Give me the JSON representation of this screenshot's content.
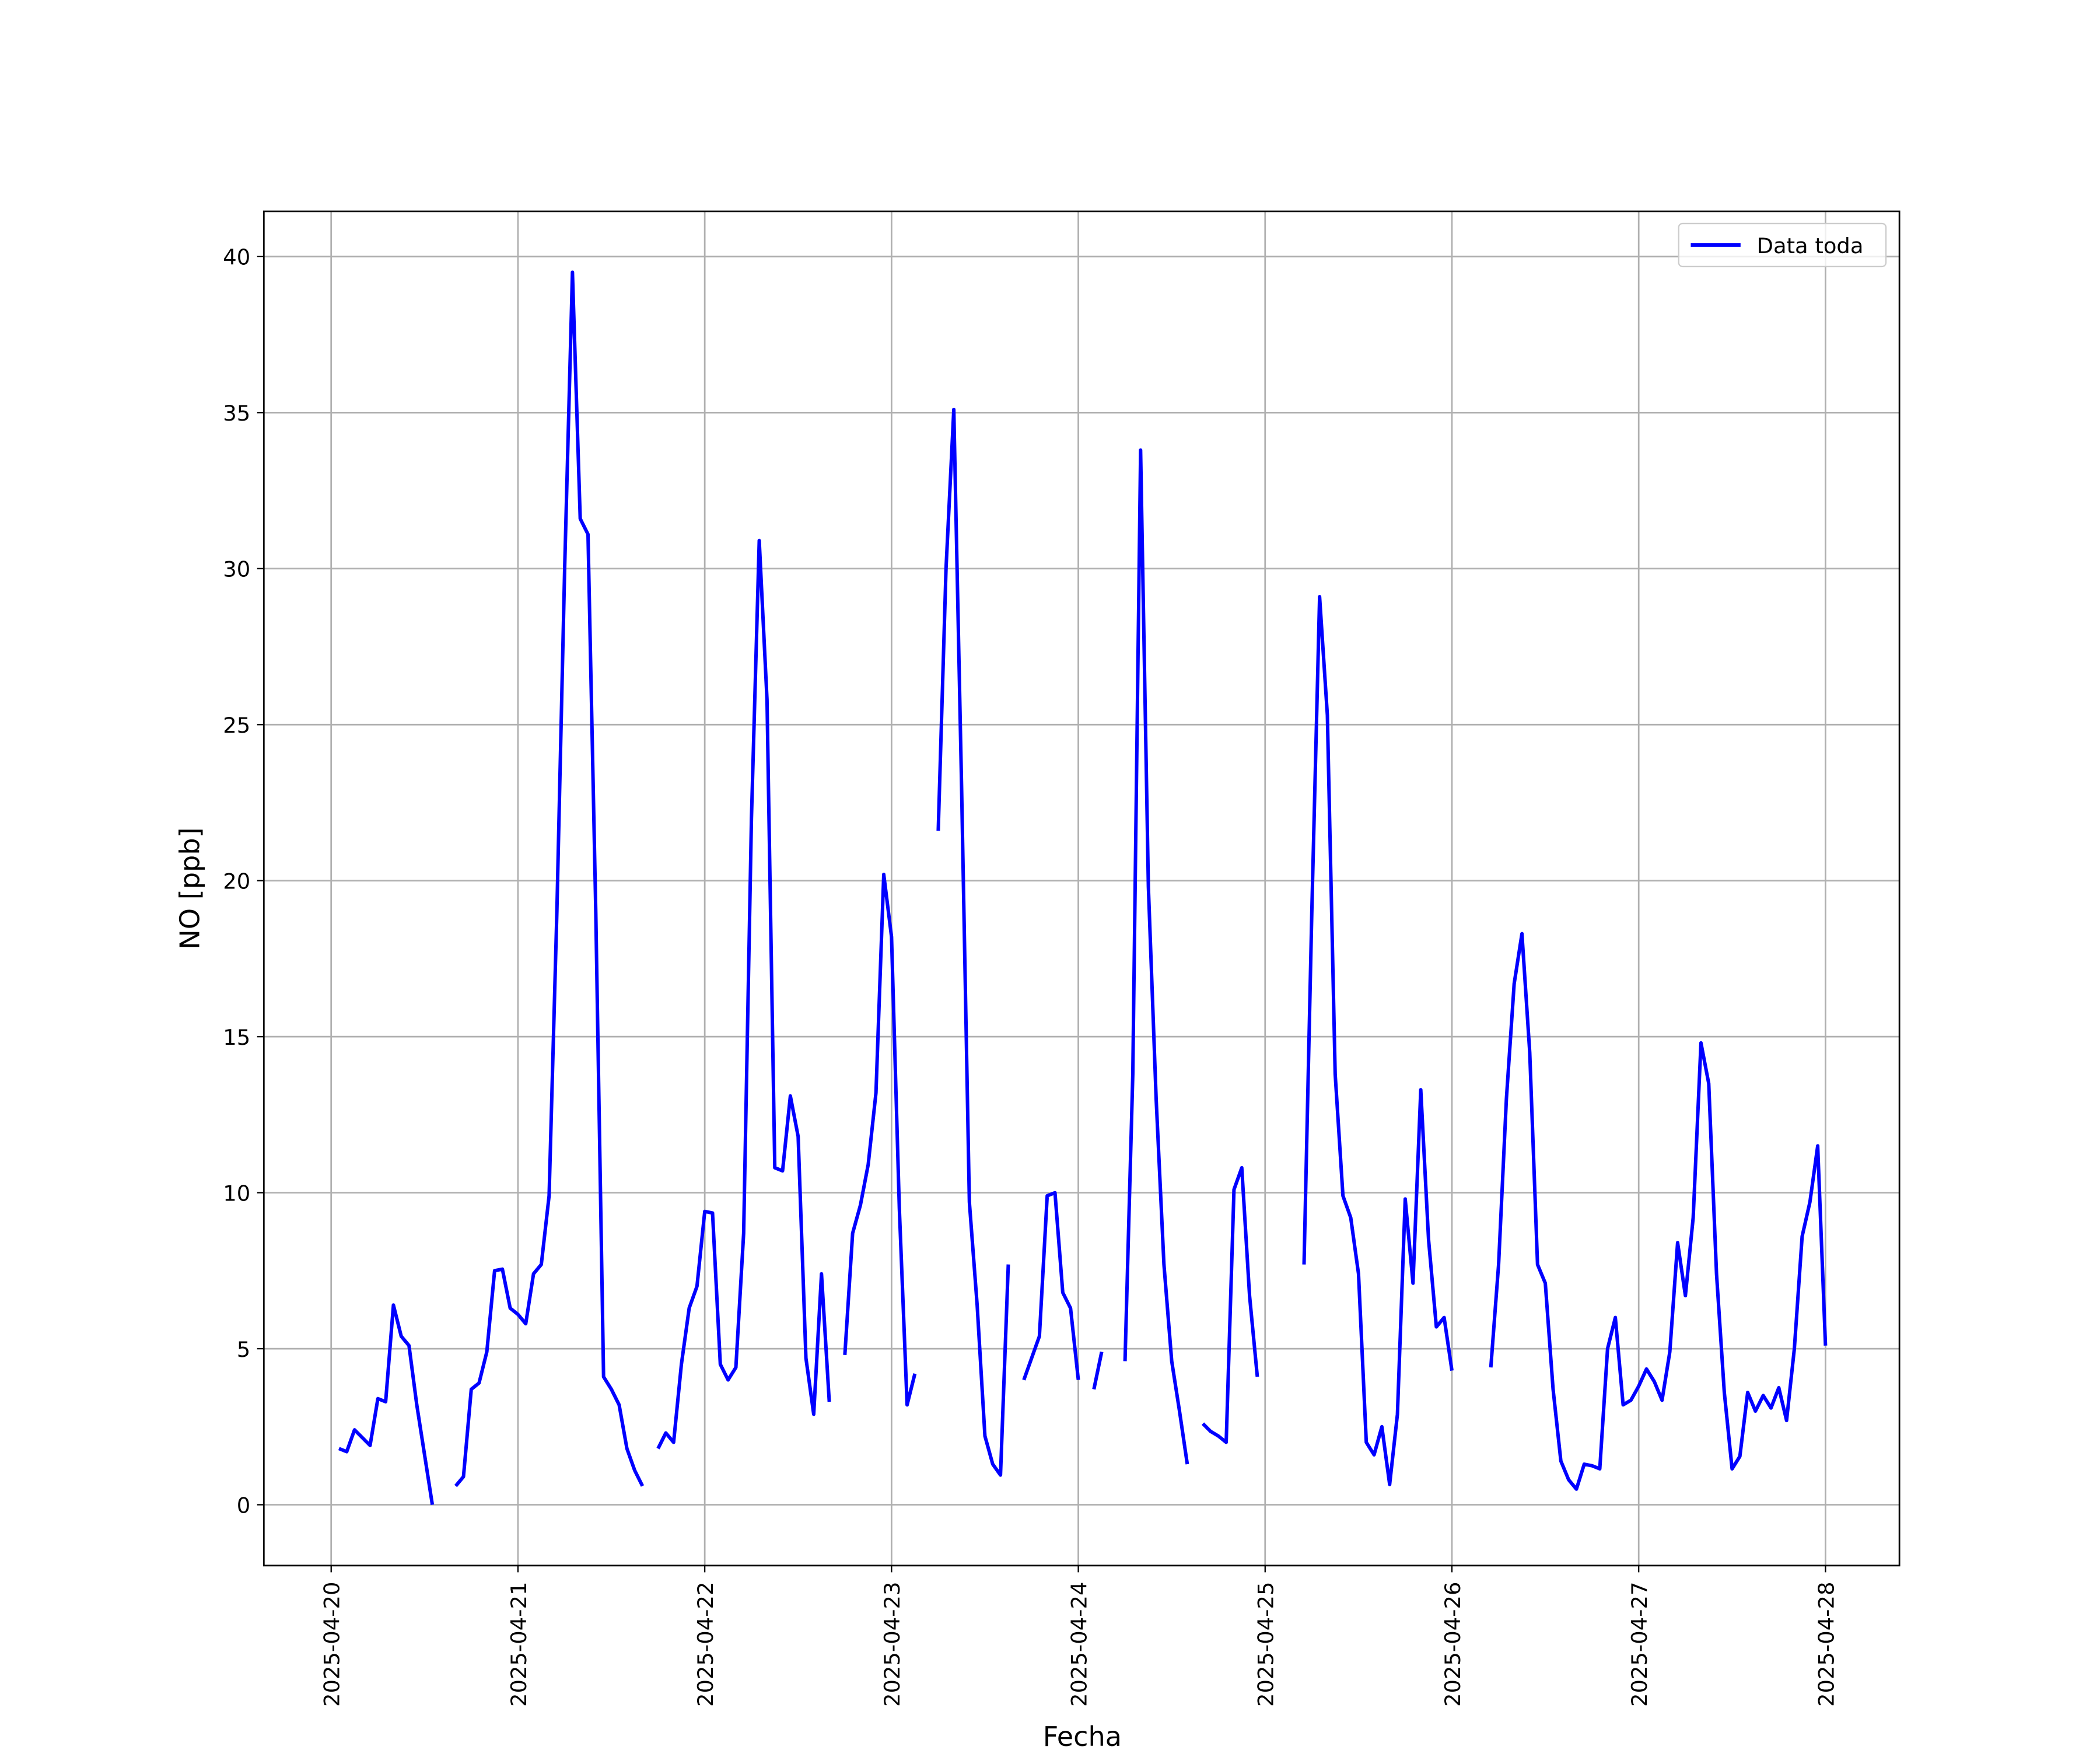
{
  "chart_data": {
    "type": "line",
    "xlabel": "Fecha",
    "ylabel": "NO [ppb]",
    "x": [
      "2025-04-20 01:00",
      "2025-04-20 02:00",
      "2025-04-20 03:00",
      "2025-04-20 04:00",
      "2025-04-20 05:00",
      "2025-04-20 06:00",
      "2025-04-20 07:00",
      "2025-04-20 08:00",
      "2025-04-20 09:00",
      "2025-04-20 10:00",
      "2025-04-20 11:00",
      "2025-04-20 12:00",
      "2025-04-20 13:00",
      "2025-04-20 14:00",
      "2025-04-20 15:00",
      "2025-04-20 16:00",
      "2025-04-20 17:00",
      "2025-04-20 18:00",
      "2025-04-20 19:00",
      "2025-04-20 20:00",
      "2025-04-20 21:00",
      "2025-04-20 22:00",
      "2025-04-20 23:00",
      "2025-04-21 00:00",
      "2025-04-21 01:00",
      "2025-04-21 02:00",
      "2025-04-21 03:00",
      "2025-04-21 04:00",
      "2025-04-21 05:00",
      "2025-04-21 06:00",
      "2025-04-21 07:00",
      "2025-04-21 08:00",
      "2025-04-21 09:00",
      "2025-04-21 10:00",
      "2025-04-21 11:00",
      "2025-04-21 12:00",
      "2025-04-21 13:00",
      "2025-04-21 14:00",
      "2025-04-21 15:00",
      "2025-04-21 16:00",
      "2025-04-21 17:00",
      "2025-04-21 18:00",
      "2025-04-21 19:00",
      "2025-04-21 20:00",
      "2025-04-21 21:00",
      "2025-04-21 22:00",
      "2025-04-21 23:00",
      "2025-04-22 00:00",
      "2025-04-22 01:00",
      "2025-04-22 02:00",
      "2025-04-22 03:00",
      "2025-04-22 04:00",
      "2025-04-22 05:00",
      "2025-04-22 06:00",
      "2025-04-22 07:00",
      "2025-04-22 08:00",
      "2025-04-22 09:00",
      "2025-04-22 10:00",
      "2025-04-22 11:00",
      "2025-04-22 12:00",
      "2025-04-22 13:00",
      "2025-04-22 14:00",
      "2025-04-22 15:00",
      "2025-04-22 16:00",
      "2025-04-22 17:00",
      "2025-04-22 18:00",
      "2025-04-22 19:00",
      "2025-04-22 20:00",
      "2025-04-22 21:00",
      "2025-04-22 22:00",
      "2025-04-22 23:00",
      "2025-04-23 00:00",
      "2025-04-23 01:00",
      "2025-04-23 02:00",
      "2025-04-23 03:00",
      "2025-04-23 04:00",
      "2025-04-23 05:00",
      "2025-04-23 06:00",
      "2025-04-23 07:00",
      "2025-04-23 08:00",
      "2025-04-23 09:00",
      "2025-04-23 10:00",
      "2025-04-23 11:00",
      "2025-04-23 12:00",
      "2025-04-23 13:00",
      "2025-04-23 14:00",
      "2025-04-23 15:00",
      "2025-04-23 16:00",
      "2025-04-23 17:00",
      "2025-04-23 18:00",
      "2025-04-23 19:00",
      "2025-04-23 20:00",
      "2025-04-23 21:00",
      "2025-04-23 22:00",
      "2025-04-23 23:00",
      "2025-04-24 00:00",
      "2025-04-24 01:00",
      "2025-04-24 02:00",
      "2025-04-24 03:00",
      "2025-04-24 04:00",
      "2025-04-24 05:00",
      "2025-04-24 06:00",
      "2025-04-24 07:00",
      "2025-04-24 08:00",
      "2025-04-24 09:00",
      "2025-04-24 10:00",
      "2025-04-24 11:00",
      "2025-04-24 12:00",
      "2025-04-24 13:00",
      "2025-04-24 14:00",
      "2025-04-24 15:00",
      "2025-04-24 16:00",
      "2025-04-24 17:00",
      "2025-04-24 18:00",
      "2025-04-24 19:00",
      "2025-04-24 20:00",
      "2025-04-24 21:00",
      "2025-04-24 22:00",
      "2025-04-24 23:00",
      "2025-04-25 00:00",
      "2025-04-25 01:00",
      "2025-04-25 02:00",
      "2025-04-25 03:00",
      "2025-04-25 04:00",
      "2025-04-25 05:00",
      "2025-04-25 06:00",
      "2025-04-25 07:00",
      "2025-04-25 08:00",
      "2025-04-25 09:00",
      "2025-04-25 10:00",
      "2025-04-25 11:00",
      "2025-04-25 12:00",
      "2025-04-25 13:00",
      "2025-04-25 14:00",
      "2025-04-25 15:00",
      "2025-04-25 16:00",
      "2025-04-25 17:00",
      "2025-04-25 18:00",
      "2025-04-25 19:00",
      "2025-04-25 20:00",
      "2025-04-25 21:00",
      "2025-04-25 22:00",
      "2025-04-25 23:00",
      "2025-04-26 00:00",
      "2025-04-26 01:00",
      "2025-04-26 02:00",
      "2025-04-26 03:00",
      "2025-04-26 04:00",
      "2025-04-26 05:00",
      "2025-04-26 06:00",
      "2025-04-26 07:00",
      "2025-04-26 08:00",
      "2025-04-26 09:00",
      "2025-04-26 10:00",
      "2025-04-26 11:00",
      "2025-04-26 12:00",
      "2025-04-26 13:00",
      "2025-04-26 14:00",
      "2025-04-26 15:00",
      "2025-04-26 16:00",
      "2025-04-26 17:00",
      "2025-04-26 18:00",
      "2025-04-26 19:00",
      "2025-04-26 20:00",
      "2025-04-26 21:00",
      "2025-04-26 22:00",
      "2025-04-26 23:00",
      "2025-04-27 00:00",
      "2025-04-27 01:00",
      "2025-04-27 02:00",
      "2025-04-27 03:00",
      "2025-04-27 04:00",
      "2025-04-27 05:00",
      "2025-04-27 06:00",
      "2025-04-27 07:00",
      "2025-04-27 08:00",
      "2025-04-27 09:00",
      "2025-04-27 10:00",
      "2025-04-27 11:00",
      "2025-04-27 12:00",
      "2025-04-27 13:00",
      "2025-04-27 14:00",
      "2025-04-27 15:00",
      "2025-04-27 16:00",
      "2025-04-27 17:00",
      "2025-04-27 18:00",
      "2025-04-27 19:00",
      "2025-04-27 20:00",
      "2025-04-27 21:00",
      "2025-04-27 22:00",
      "2025-04-27 23:00",
      "2025-04-28 00:00"
    ],
    "series": [
      {
        "name": "Data toda",
        "color": "#0000ff",
        "values": [
          1.8,
          1.7,
          2.4,
          2.15,
          1.9,
          3.4,
          3.3,
          6.4,
          5.4,
          5.1,
          3.2,
          1.6,
          0,
          null,
          null,
          0.6,
          0.9,
          3.7,
          3.9,
          4.9,
          7.5,
          7.55,
          6.3,
          6.1,
          5.8,
          7.4,
          7.7,
          9.9,
          19,
          30,
          39.5,
          31.6,
          31.1,
          19,
          4.1,
          3.7,
          3.2,
          1.8,
          1.1,
          0.6,
          null,
          1.8,
          2.3,
          2.0,
          4.5,
          6.3,
          7.0,
          9.4,
          9.35,
          4.5,
          4.0,
          4.4,
          8.7,
          22,
          30.9,
          25.8,
          10.8,
          10.7,
          13.1,
          11.8,
          4.7,
          2.9,
          7.4,
          3.3,
          null,
          4.8,
          8.7,
          9.6,
          10.9,
          13.2,
          20.2,
          18.2,
          9.5,
          3.2,
          4.2,
          null,
          null,
          21.6,
          30,
          35.1,
          23,
          9.7,
          6.4,
          2.2,
          1.3,
          0.95,
          7.7,
          null,
          4.0,
          4.7,
          5.4,
          9.9,
          10.0,
          6.8,
          6.3,
          4.0,
          null,
          3.7,
          4.9,
          null,
          null,
          4.6,
          13.8,
          33.8,
          19.8,
          13,
          7.7,
          4.6,
          3.0,
          1.3,
          null,
          2.6,
          2.35,
          2.2,
          2.0,
          10.1,
          10.8,
          6.7,
          4.1,
          null,
          null,
          null,
          null,
          null,
          7.7,
          19,
          29.1,
          25.3,
          13.8,
          9.9,
          9.2,
          7.4,
          2.0,
          1.6,
          2.5,
          0.65,
          2.9,
          9.8,
          7.1,
          13.3,
          8.5,
          5.7,
          6.0,
          4.3,
          null,
          null,
          null,
          null,
          4.4,
          7.7,
          13,
          16.7,
          18.3,
          14.5,
          7.7,
          7.1,
          3.7,
          1.4,
          0.8,
          0.5,
          1.3,
          1.25,
          1.15,
          5.0,
          6.0,
          3.2,
          3.35,
          3.8,
          4.35,
          3.95,
          3.35,
          4.9,
          8.4,
          6.7,
          9.2,
          14.8,
          13.5,
          7.4,
          3.6,
          1.15,
          1.55,
          3.6,
          3.0,
          3.5,
          3.1,
          3.75,
          2.7,
          5.0,
          8.6,
          9.7,
          11.5,
          5.1
        ]
      }
    ],
    "xlim": [
      "2025-04-19 15:21",
      "2025-04-28 09:30"
    ],
    "xticks": [
      "2025-04-20",
      "2025-04-21",
      "2025-04-22",
      "2025-04-23",
      "2025-04-24",
      "2025-04-25",
      "2025-04-26",
      "2025-04-27",
      "2025-04-28"
    ],
    "ylim": [
      -1.95,
      41.45
    ],
    "yticks": [
      0,
      5,
      10,
      15,
      20,
      25,
      30,
      35,
      40
    ],
    "grid": true,
    "legend": "upper right"
  }
}
